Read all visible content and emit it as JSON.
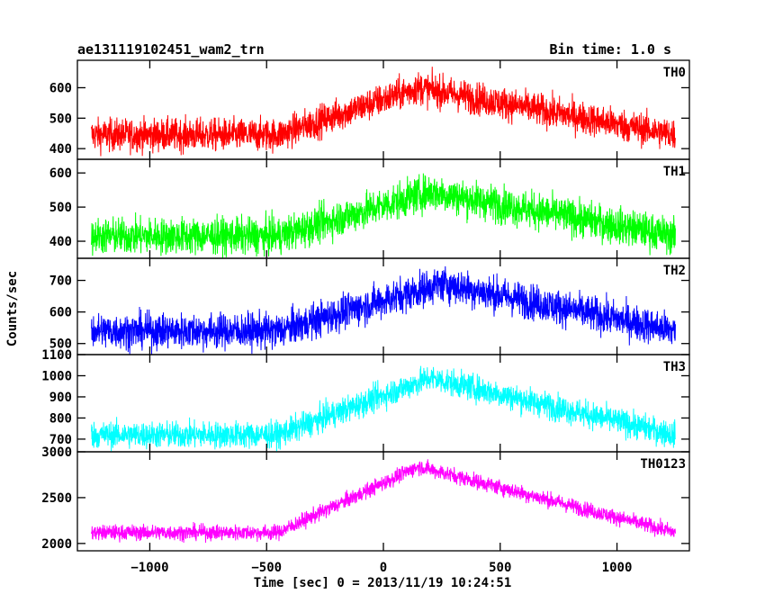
{
  "header": {
    "title": "ae131119102451_wam2_trn",
    "bin_time": "Bin time: 1.0 s"
  },
  "chart_data": {
    "type": "line",
    "xlabel": "Time [sec] 0 = 2013/11/19 10:24:51",
    "ylabel": "Counts/sec",
    "xlim": [
      -1310,
      1310
    ],
    "x_ticks": [
      -1000,
      -500,
      0,
      500,
      1000
    ],
    "x_tick_labels": [
      "−1000",
      "−500",
      "0",
      "500",
      "1000"
    ],
    "x_start": -1250,
    "x_end": 1250,
    "panels": [
      {
        "name": "TH0",
        "color": "#ff0000",
        "ylim": [
          365,
          690
        ],
        "y_ticks": [
          400,
          500,
          600
        ],
        "baseline": 445,
        "peak": 600,
        "noise": 38,
        "peak_x": 150,
        "rise_start": -450,
        "decay_end": 1250
      },
      {
        "name": "TH1",
        "color": "#00ff00",
        "ylim": [
          350,
          640
        ],
        "y_ticks": [
          400,
          500,
          600
        ],
        "baseline": 415,
        "peak": 545,
        "noise": 38,
        "peak_x": 200,
        "rise_start": -450,
        "decay_end": 1250
      },
      {
        "name": "TH2",
        "color": "#0000ff",
        "ylim": [
          465,
          770
        ],
        "y_ticks": [
          500,
          600,
          700
        ],
        "baseline": 540,
        "peak": 690,
        "noise": 40,
        "peak_x": 250,
        "rise_start": -450,
        "decay_end": 1250
      },
      {
        "name": "TH3",
        "color": "#00ffff",
        "ylim": [
          640,
          1100
        ],
        "y_ticks": [
          700,
          800,
          900,
          1000,
          1100
        ],
        "baseline": 720,
        "peak": 990,
        "noise": 45,
        "peak_x": 200,
        "rise_start": -450,
        "decay_end": 1250
      },
      {
        "name": "TH0123",
        "color": "#ff00ff",
        "ylim": [
          1920,
          3000
        ],
        "y_ticks": [
          2000,
          2500,
          3000
        ],
        "baseline": 2120,
        "peak": 2840,
        "noise": 60,
        "peak_x": 150,
        "rise_start": -450,
        "decay_end": 1250
      }
    ]
  }
}
